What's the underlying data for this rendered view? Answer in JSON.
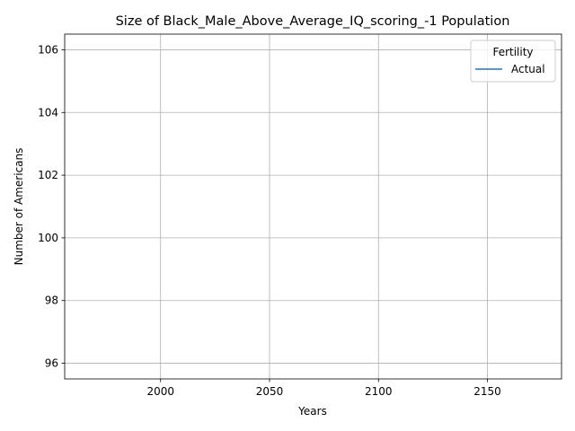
{
  "chart_data": {
    "type": "line",
    "title": "Size of Black_Male_Above_Average_IQ_scoring_-1 Population",
    "xlabel": "Years",
    "ylabel": "Number of Americans",
    "xlim": [
      1956,
      2184
    ],
    "ylim": [
      95.5,
      106.5
    ],
    "xticks": [
      2000,
      2050,
      2100,
      2150
    ],
    "yticks": [
      96,
      98,
      100,
      102,
      104,
      106
    ],
    "grid": true,
    "legend": {
      "title": "Fertility",
      "position": "top-right"
    },
    "series": [
      {
        "name": "Actual",
        "color": "#1f77b4",
        "x": [],
        "y": []
      }
    ]
  }
}
